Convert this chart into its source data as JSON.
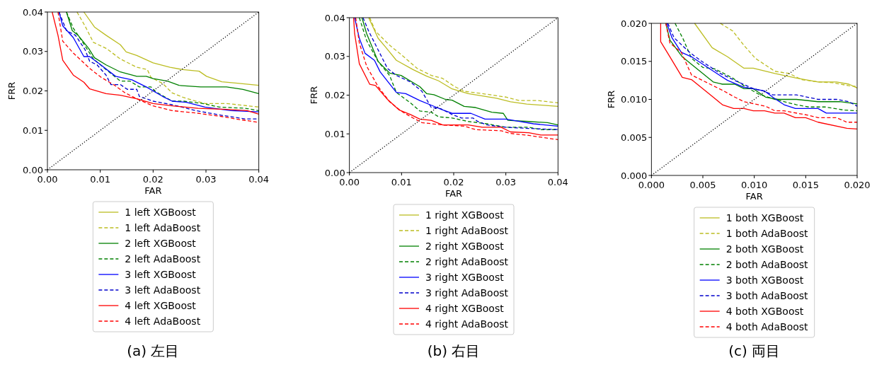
{
  "chart_data": [
    {
      "type": "line",
      "xlabel": "FAR",
      "ylabel": "FRR",
      "annotations": [
        "(a) 左目"
      ],
      "legend": "bottom",
      "grid": false,
      "marker": "none",
      "xlim": [
        0,
        0.04
      ],
      "ylim": [
        0,
        0.04
      ],
      "xticks": [
        {
          "value": 0,
          "label": "0.00"
        },
        {
          "value": 0.01,
          "label": "0.01"
        },
        {
          "value": 0.02,
          "label": "0.02"
        },
        {
          "value": 0.03,
          "label": "0.03"
        },
        {
          "value": 0.04,
          "label": "0.04"
        }
      ],
      "yticks": [
        {
          "value": 0,
          "label": "0.00"
        },
        {
          "value": 0.01,
          "label": "0.01"
        },
        {
          "value": 0.02,
          "label": "0.02"
        },
        {
          "value": 0.03,
          "label": "0.03"
        },
        {
          "value": 0.04,
          "label": "0.04"
        }
      ],
      "series": [
        {
          "name": "1 left XGBoost",
          "color": "#bcbd22",
          "line_style": "solid",
          "x": [
            0.0069,
            0.0089,
            0.0111,
            0.0138,
            0.0149,
            0.0169,
            0.02,
            0.0232,
            0.0256,
            0.0287,
            0.0301,
            0.033,
            0.0356,
            0.04
          ],
          "values": [
            0.04,
            0.0362,
            0.0341,
            0.0317,
            0.0299,
            0.029,
            0.0271,
            0.026,
            0.0254,
            0.025,
            0.0237,
            0.0223,
            0.022,
            0.0214
          ]
        },
        {
          "name": "1 left AdaBoost",
          "color": "#bcbd22",
          "line_style": "dashed",
          "x": [
            0.0056,
            0.0071,
            0.0087,
            0.0111,
            0.0138,
            0.0169,
            0.0189,
            0.0196,
            0.0218,
            0.0236,
            0.0258,
            0.0281,
            0.0298,
            0.0339,
            0.04
          ],
          "values": [
            0.04,
            0.0365,
            0.0323,
            0.0308,
            0.0281,
            0.026,
            0.0254,
            0.0234,
            0.0219,
            0.0195,
            0.0183,
            0.0174,
            0.0168,
            0.0168,
            0.0159
          ]
        },
        {
          "name": "2 left XGBoost",
          "color": "#008000",
          "line_style": "solid",
          "x": [
            0.0036,
            0.0047,
            0.0058,
            0.0078,
            0.0089,
            0.0111,
            0.0138,
            0.0169,
            0.0187,
            0.02,
            0.0227,
            0.0249,
            0.029,
            0.0339,
            0.037,
            0.04
          ],
          "values": [
            0.04,
            0.0353,
            0.0341,
            0.0308,
            0.0284,
            0.0266,
            0.0248,
            0.0237,
            0.0237,
            0.0231,
            0.0225,
            0.0214,
            0.021,
            0.021,
            0.0204,
            0.0193
          ]
        },
        {
          "name": "2 left AdaBoost",
          "color": "#008000",
          "line_style": "dashed",
          "x": [
            0.0036,
            0.0049,
            0.0067,
            0.0087,
            0.0111,
            0.0138,
            0.0156,
            0.0174,
            0.0196,
            0.0205,
            0.0236,
            0.0258,
            0.0294,
            0.0325,
            0.0374,
            0.04
          ],
          "values": [
            0.04,
            0.0359,
            0.0323,
            0.0281,
            0.0254,
            0.0225,
            0.0225,
            0.021,
            0.021,
            0.0198,
            0.0174,
            0.0174,
            0.0168,
            0.0159,
            0.0156,
            0.015
          ]
        },
        {
          "name": "3 left XGBoost",
          "color": "#0000ff",
          "line_style": "solid",
          "x": [
            0.0022,
            0.0029,
            0.0049,
            0.0069,
            0.008,
            0.0098,
            0.0129,
            0.016,
            0.0187,
            0.0218,
            0.0236,
            0.0263,
            0.0298,
            0.0347,
            0.04
          ],
          "values": [
            0.04,
            0.0365,
            0.0335,
            0.0287,
            0.0287,
            0.0269,
            0.0237,
            0.0228,
            0.021,
            0.0186,
            0.0174,
            0.0171,
            0.0159,
            0.015,
            0.0147
          ]
        },
        {
          "name": "3 left AdaBoost",
          "color": "#0000cc",
          "line_style": "dashed",
          "x": [
            0.0022,
            0.0036,
            0.0053,
            0.0071,
            0.008,
            0.0094,
            0.0111,
            0.012,
            0.0138,
            0.0151,
            0.0169,
            0.0174,
            0.02,
            0.0236,
            0.0281,
            0.033,
            0.0374,
            0.04
          ],
          "values": [
            0.04,
            0.0353,
            0.0341,
            0.0305,
            0.0275,
            0.0266,
            0.024,
            0.0216,
            0.0216,
            0.0204,
            0.0204,
            0.0186,
            0.0174,
            0.0165,
            0.015,
            0.0138,
            0.0129,
            0.0129
          ]
        },
        {
          "name": "4 left XGBoost",
          "color": "#ff0000",
          "line_style": "solid",
          "x": [
            0.0009,
            0.002,
            0.0029,
            0.0049,
            0.0069,
            0.008,
            0.0111,
            0.0138,
            0.0169,
            0.02,
            0.0236,
            0.0285,
            0.0339,
            0.0378,
            0.04
          ],
          "values": [
            0.04,
            0.0341,
            0.0278,
            0.024,
            0.0222,
            0.0205,
            0.0193,
            0.0189,
            0.018,
            0.0168,
            0.0162,
            0.0156,
            0.0153,
            0.015,
            0.0141
          ]
        },
        {
          "name": "4 left AdaBoost",
          "color": "#ff0000",
          "line_style": "dashed",
          "x": [
            0.002,
            0.0029,
            0.0049,
            0.008,
            0.0102,
            0.0125,
            0.0147,
            0.0169,
            0.02,
            0.0236,
            0.0281,
            0.033,
            0.0356,
            0.04
          ],
          "values": [
            0.04,
            0.0326,
            0.0296,
            0.0257,
            0.0234,
            0.0216,
            0.0195,
            0.018,
            0.0162,
            0.015,
            0.0144,
            0.0135,
            0.0129,
            0.012
          ]
        },
        {
          "color": "#000000",
          "line_style": "dotted",
          "x": [
            0,
            0.04
          ],
          "values": [
            0,
            0.04
          ]
        }
      ]
    },
    {
      "type": "line",
      "xlabel": "FAR",
      "ylabel": "FRR",
      "annotations": [
        "(b) 右目"
      ],
      "legend": "bottom",
      "grid": false,
      "marker": "none",
      "xlim": [
        0,
        0.04
      ],
      "ylim": [
        0,
        0.04
      ],
      "xticks": [
        {
          "value": 0,
          "label": "0.00"
        },
        {
          "value": 0.01,
          "label": "0.01"
        },
        {
          "value": 0.02,
          "label": "0.02"
        },
        {
          "value": 0.03,
          "label": "0.03"
        },
        {
          "value": 0.04,
          "label": "0.04"
        }
      ],
      "yticks": [
        {
          "value": 0,
          "label": "0.00"
        },
        {
          "value": 0.01,
          "label": "0.01"
        },
        {
          "value": 0.02,
          "label": "0.02"
        },
        {
          "value": 0.03,
          "label": "0.03"
        },
        {
          "value": 0.04,
          "label": "0.04"
        }
      ],
      "series": [
        {
          "name": "1 right XGBoost",
          "color": "#bcbd22",
          "line_style": "solid",
          "x": [
            0.0037,
            0.0055,
            0.007,
            0.009,
            0.0122,
            0.0148,
            0.0171,
            0.0197,
            0.0228,
            0.0255,
            0.0282,
            0.0309,
            0.034,
            0.04
          ],
          "values": [
            0.04,
            0.0347,
            0.0323,
            0.029,
            0.0266,
            0.0249,
            0.0237,
            0.0216,
            0.0204,
            0.0198,
            0.0192,
            0.0183,
            0.0177,
            0.0171
          ]
        },
        {
          "name": "1 right AdaBoost",
          "color": "#bcbd22",
          "line_style": "dashed",
          "x": [
            0.0039,
            0.005,
            0.0077,
            0.0099,
            0.013,
            0.0157,
            0.0179,
            0.0202,
            0.022,
            0.0255,
            0.03,
            0.0326,
            0.0362,
            0.04
          ],
          "values": [
            0.04,
            0.0365,
            0.0329,
            0.0305,
            0.0269,
            0.0251,
            0.0243,
            0.0222,
            0.021,
            0.0204,
            0.0195,
            0.0186,
            0.0186,
            0.018
          ]
        },
        {
          "name": "2 right XGBoost",
          "color": "#008000",
          "line_style": "solid",
          "x": [
            0.0024,
            0.0033,
            0.0055,
            0.0077,
            0.0099,
            0.0135,
            0.0148,
            0.0162,
            0.0184,
            0.0197,
            0.022,
            0.0242,
            0.0273,
            0.0295,
            0.0304,
            0.0344,
            0.038,
            0.04
          ],
          "values": [
            0.04,
            0.0359,
            0.0287,
            0.0257,
            0.0251,
            0.0222,
            0.0204,
            0.0201,
            0.0189,
            0.0187,
            0.0171,
            0.0168,
            0.0156,
            0.0153,
            0.0135,
            0.0132,
            0.0129,
            0.0123
          ]
        },
        {
          "name": "2 right AdaBoost",
          "color": "#008000",
          "line_style": "dashed",
          "x": [
            0.0019,
            0.0033,
            0.0055,
            0.0077,
            0.009,
            0.0117,
            0.0135,
            0.0157,
            0.0171,
            0.0197,
            0.0228,
            0.0264,
            0.03,
            0.0344,
            0.0367,
            0.04
          ],
          "values": [
            0.04,
            0.0341,
            0.0287,
            0.0251,
            0.0207,
            0.018,
            0.0159,
            0.0156,
            0.0144,
            0.0141,
            0.0132,
            0.0126,
            0.0117,
            0.0117,
            0.0111,
            0.0111
          ]
        },
        {
          "name": "3 right XGBoost",
          "color": "#0000ff",
          "line_style": "solid",
          "x": [
            0.001,
            0.0019,
            0.003,
            0.0048,
            0.0059,
            0.009,
            0.0108,
            0.0135,
            0.0157,
            0.0179,
            0.0197,
            0.0233,
            0.026,
            0.03,
            0.0326,
            0.0353,
            0.04
          ],
          "values": [
            0.04,
            0.0347,
            0.0308,
            0.029,
            0.026,
            0.0207,
            0.0204,
            0.0186,
            0.0174,
            0.0162,
            0.0153,
            0.0153,
            0.0138,
            0.0138,
            0.0132,
            0.0126,
            0.012
          ]
        },
        {
          "name": "3 right AdaBoost",
          "color": "#0000cc",
          "line_style": "dashed",
          "x": [
            0.0026,
            0.0037,
            0.0055,
            0.0073,
            0.009,
            0.0117,
            0.0139,
            0.0157,
            0.0175,
            0.0197,
            0.0215,
            0.0237,
            0.0246,
            0.0264,
            0.03,
            0.0344,
            0.04
          ],
          "values": [
            0.04,
            0.0365,
            0.0317,
            0.0269,
            0.0251,
            0.0234,
            0.021,
            0.0168,
            0.0165,
            0.015,
            0.0141,
            0.0141,
            0.0132,
            0.0123,
            0.0117,
            0.0114,
            0.0111
          ]
        },
        {
          "name": "4 right XGBoost",
          "color": "#ff0000",
          "line_style": "solid",
          "x": [
            0.0008,
            0.001,
            0.0019,
            0.0039,
            0.005,
            0.0073,
            0.0095,
            0.0117,
            0.0135,
            0.0157,
            0.0179,
            0.0228,
            0.0255,
            0.0291,
            0.0309,
            0.0344,
            0.0367,
            0.04
          ],
          "values": [
            0.04,
            0.0359,
            0.0281,
            0.0228,
            0.0225,
            0.0189,
            0.0162,
            0.015,
            0.0138,
            0.0135,
            0.0123,
            0.0123,
            0.0117,
            0.0117,
            0.0105,
            0.0103,
            0.0097,
            0.0097
          ]
        },
        {
          "name": "4 right AdaBoost",
          "color": "#ff0000",
          "line_style": "dashed",
          "x": [
            0.0012,
            0.0019,
            0.0033,
            0.0055,
            0.0077,
            0.0099,
            0.0122,
            0.0139,
            0.0179,
            0.022,
            0.0242,
            0.0291,
            0.0309,
            0.0344,
            0.04
          ],
          "values": [
            0.04,
            0.0335,
            0.0275,
            0.0222,
            0.0183,
            0.0159,
            0.0141,
            0.0129,
            0.0123,
            0.012,
            0.0111,
            0.0108,
            0.0101,
            0.0096,
            0.0085
          ]
        },
        {
          "color": "#000000",
          "line_style": "dotted",
          "x": [
            0,
            0.04
          ],
          "values": [
            0,
            0.04
          ]
        }
      ]
    },
    {
      "type": "line",
      "xlabel": "FAR",
      "ylabel": "FRR",
      "annotations": [
        "(c) 両目"
      ],
      "legend": "bottom",
      "grid": false,
      "marker": "none",
      "xlim": [
        0,
        0.02
      ],
      "ylim": [
        0,
        0.02
      ],
      "xticks": [
        {
          "value": 0,
          "label": "0.000"
        },
        {
          "value": 0.005,
          "label": "0.005"
        },
        {
          "value": 0.01,
          "label": "0.010"
        },
        {
          "value": 0.015,
          "label": "0.015"
        },
        {
          "value": 0.02,
          "label": "0.020"
        }
      ],
      "yticks": [
        {
          "value": 0,
          "label": "0.000"
        },
        {
          "value": 0.005,
          "label": "0.005"
        },
        {
          "value": 0.01,
          "label": "0.010"
        },
        {
          "value": 0.015,
          "label": "0.015"
        },
        {
          "value": 0.02,
          "label": "0.020"
        }
      ],
      "series": [
        {
          "name": "1 both XGBoost",
          "color": "#bcbd22",
          "line_style": "solid",
          "x": [
            0.0042,
            0.0059,
            0.0074,
            0.009,
            0.0099,
            0.012,
            0.0141,
            0.0162,
            0.018,
            0.0192,
            0.02
          ],
          "values": [
            0.02,
            0.0168,
            0.0156,
            0.0141,
            0.0141,
            0.0134,
            0.0128,
            0.0123,
            0.0123,
            0.012,
            0.0115
          ]
        },
        {
          "name": "1 both AdaBoost",
          "color": "#bcbd22",
          "line_style": "dashed",
          "x": [
            0.0067,
            0.0079,
            0.009,
            0.0101,
            0.012,
            0.0134,
            0.0146,
            0.0162,
            0.0176,
            0.0192,
            0.02
          ],
          "values": [
            0.02,
            0.019,
            0.0171,
            0.0154,
            0.0137,
            0.0134,
            0.0126,
            0.0123,
            0.0122,
            0.0118,
            0.0117
          ]
        },
        {
          "name": "2 both XGBoost",
          "color": "#008000",
          "line_style": "solid",
          "x": [
            0.0014,
            0.0018,
            0.003,
            0.0039,
            0.006,
            0.0069,
            0.0081,
            0.009,
            0.0099,
            0.0111,
            0.0123,
            0.0141,
            0.0162,
            0.0183,
            0.02
          ],
          "values": [
            0.02,
            0.0178,
            0.0156,
            0.0146,
            0.0123,
            0.012,
            0.012,
            0.0114,
            0.0114,
            0.0103,
            0.01,
            0.01,
            0.0097,
            0.0097,
            0.0094
          ]
        },
        {
          "name": "2 both AdaBoost",
          "color": "#008000",
          "line_style": "dashed",
          "x": [
            0.0023,
            0.0031,
            0.0039,
            0.005,
            0.0062,
            0.0079,
            0.009,
            0.0104,
            0.012,
            0.0141,
            0.0153,
            0.0169,
            0.0187,
            0.02
          ],
          "values": [
            0.02,
            0.0179,
            0.0154,
            0.0142,
            0.014,
            0.0128,
            0.0118,
            0.0107,
            0.01,
            0.0093,
            0.009,
            0.009,
            0.0086,
            0.0085
          ]
        },
        {
          "name": "3 both XGBoost",
          "color": "#0000ff",
          "line_style": "solid",
          "x": [
            0.0015,
            0.002,
            0.0029,
            0.0039,
            0.0058,
            0.0074,
            0.009,
            0.0099,
            0.011,
            0.012,
            0.0129,
            0.014,
            0.0162,
            0.017,
            0.02
          ],
          "values": [
            0.02,
            0.0181,
            0.0162,
            0.0156,
            0.0139,
            0.0125,
            0.0116,
            0.0114,
            0.0111,
            0.0101,
            0.0093,
            0.0088,
            0.0088,
            0.0082,
            0.0082
          ]
        },
        {
          "name": "3 both AdaBoost",
          "color": "#0000cc",
          "line_style": "dashed",
          "x": [
            0.0016,
            0.0022,
            0.0037,
            0.0049,
            0.0067,
            0.0081,
            0.0099,
            0.0109,
            0.0118,
            0.0141,
            0.0162,
            0.018,
            0.0192,
            0.02
          ],
          "values": [
            0.02,
            0.0181,
            0.0162,
            0.015,
            0.0134,
            0.0125,
            0.0114,
            0.0111,
            0.0106,
            0.0106,
            0.01,
            0.01,
            0.0097,
            0.0091
          ]
        },
        {
          "name": "4 both XGBoost",
          "color": "#ff0000",
          "line_style": "solid",
          "x": [
            0.0009,
            0.0009,
            0.0018,
            0.003,
            0.0039,
            0.006,
            0.0069,
            0.008,
            0.009,
            0.0099,
            0.011,
            0.012,
            0.0129,
            0.014,
            0.015,
            0.0162,
            0.019,
            0.02
          ],
          "values": [
            0.02,
            0.0176,
            0.0156,
            0.0129,
            0.0126,
            0.0103,
            0.0093,
            0.0088,
            0.0088,
            0.0085,
            0.0085,
            0.0082,
            0.0082,
            0.0076,
            0.0076,
            0.007,
            0.0062,
            0.0061
          ]
        },
        {
          "name": "4 both AdaBoost",
          "color": "#ff0000",
          "line_style": "dashed",
          "x": [
            0.0014,
            0.0018,
            0.0029,
            0.0039,
            0.006,
            0.0069,
            0.0081,
            0.009,
            0.0111,
            0.012,
            0.0129,
            0.0153,
            0.0162,
            0.018,
            0.019,
            0.02
          ],
          "values": [
            0.02,
            0.0174,
            0.0162,
            0.0132,
            0.0118,
            0.0112,
            0.0103,
            0.0097,
            0.0091,
            0.0085,
            0.0085,
            0.0079,
            0.0076,
            0.0076,
            0.007,
            0.007
          ]
        },
        {
          "color": "#000000",
          "line_style": "dotted",
          "x": [
            0,
            0.02
          ],
          "values": [
            0,
            0.02
          ]
        }
      ]
    }
  ]
}
